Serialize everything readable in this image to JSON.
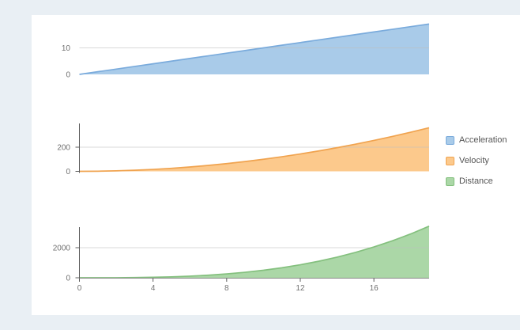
{
  "background": {
    "page": "#e9eff4",
    "panel": "#ffffff"
  },
  "legend": {
    "items": [
      {
        "label": "Acceleration",
        "fill": "#a9cbe9",
        "border": "#7aabdc"
      },
      {
        "label": "Velocity",
        "fill": "#fcc98c",
        "border": "#f0a34f"
      },
      {
        "label": "Distance",
        "fill": "#abd7a7",
        "border": "#84c07e"
      }
    ]
  },
  "x_axis": {
    "ticks": [
      0,
      4,
      8,
      12,
      16
    ],
    "range": [
      0,
      19
    ]
  },
  "chart_data": [
    {
      "type": "area",
      "name": "Acceleration",
      "x": [
        0,
        1,
        2,
        3,
        4,
        5,
        6,
        7,
        8,
        9,
        10,
        11,
        12,
        13,
        14,
        15,
        16,
        17,
        18,
        19
      ],
      "values": [
        0,
        1,
        2,
        3,
        4,
        5,
        6,
        7,
        8,
        9,
        10,
        11,
        12,
        13,
        14,
        15,
        16,
        17,
        18,
        19
      ],
      "yticks": [
        0,
        10
      ],
      "ylim": [
        0,
        19.7
      ],
      "fill": "#a9cbe9",
      "line": "#7aabdc",
      "x_axis_visible": false,
      "y_axis_line": false
    },
    {
      "type": "area",
      "name": "Velocity",
      "x": [
        0,
        1,
        2,
        3,
        4,
        5,
        6,
        7,
        8,
        9,
        10,
        11,
        12,
        13,
        14,
        15,
        16,
        17,
        18,
        19
      ],
      "values": [
        0,
        1,
        4,
        9,
        16,
        25,
        36,
        49,
        64,
        81,
        100,
        121,
        144,
        169,
        196,
        225,
        256,
        289,
        324,
        361
      ],
      "yticks": [
        0,
        200
      ],
      "ylim": [
        0,
        397
      ],
      "fill": "#fcc98c",
      "line": "#f0a34f",
      "x_axis_visible": false,
      "y_axis_line": true
    },
    {
      "type": "area",
      "name": "Distance",
      "x": [
        0,
        1,
        2,
        3,
        4,
        5,
        6,
        7,
        8,
        9,
        10,
        11,
        12,
        13,
        14,
        15,
        16,
        17,
        18,
        19
      ],
      "values": [
        0,
        0.5,
        4,
        13.5,
        32,
        62.5,
        108,
        171.5,
        256,
        364.5,
        500,
        665.5,
        864,
        1098.5,
        1372,
        1687.5,
        2048,
        2456.5,
        2916,
        3429.5
      ],
      "yticks": [
        0,
        2000
      ],
      "ylim": [
        0,
        3368
      ],
      "fill": "#abd7a7",
      "line": "#84c07e",
      "x_axis_visible": true,
      "y_axis_line": true
    }
  ]
}
